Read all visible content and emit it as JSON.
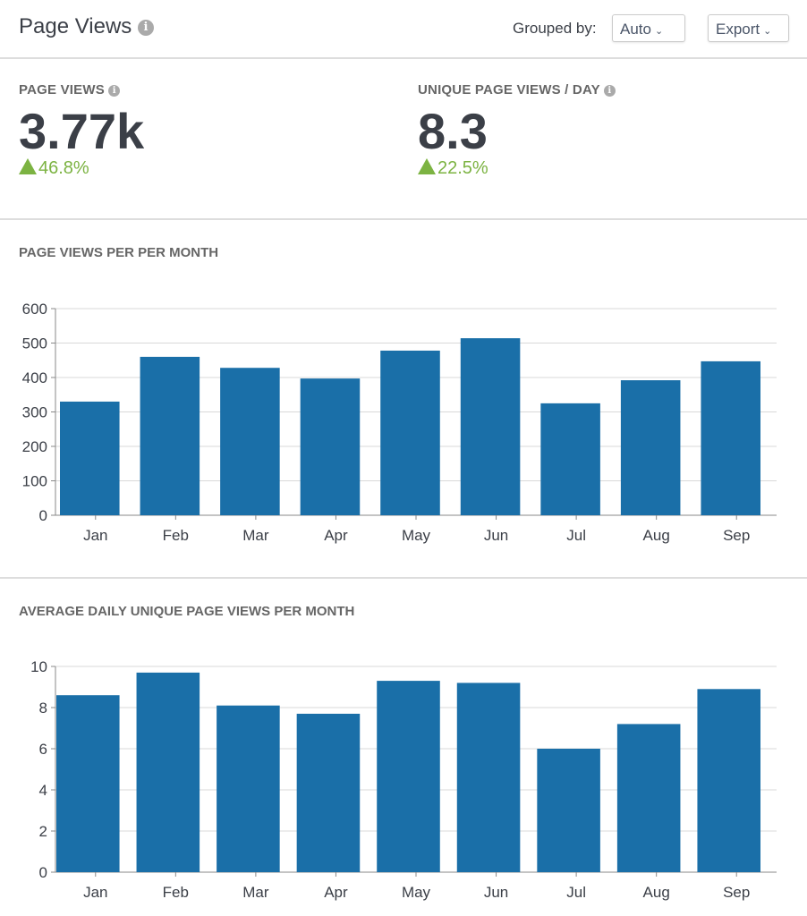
{
  "header": {
    "title": "Page Views",
    "info_icon": "info-icon",
    "grouped_label": "Grouped by:",
    "grouped_value": "Auto",
    "export_label": "Export"
  },
  "metrics": [
    {
      "label": "PAGE VIEWS",
      "value": "3.77k",
      "change": "46.8%",
      "trend": "up"
    },
    {
      "label": "UNIQUE PAGE VIEWS / DAY",
      "value": "8.3",
      "change": "22.5%",
      "trend": "up"
    }
  ],
  "colors": {
    "bar": "#1a6fa8",
    "positive": "#7cb342",
    "grid": "#d9d9d9"
  },
  "chart_data": [
    {
      "type": "bar",
      "title": "PAGE VIEWS PER PER MONTH",
      "categories": [
        "Jan",
        "Feb",
        "Mar",
        "Apr",
        "May",
        "Jun",
        "Jul",
        "Aug",
        "Sep"
      ],
      "values": [
        330,
        460,
        428,
        397,
        478,
        514,
        325,
        392,
        447
      ],
      "ylim": [
        0,
        600
      ],
      "yticks": [
        0,
        100,
        200,
        300,
        400,
        500,
        600
      ],
      "grid": true
    },
    {
      "type": "bar",
      "title": "AVERAGE DAILY UNIQUE PAGE VIEWS PER MONTH",
      "categories": [
        "Jan",
        "Feb",
        "Mar",
        "Apr",
        "May",
        "Jun",
        "Jul",
        "Aug",
        "Sep"
      ],
      "values": [
        8.6,
        9.7,
        8.1,
        7.7,
        9.3,
        9.2,
        6.0,
        7.2,
        8.9
      ],
      "ylim": [
        0,
        10
      ],
      "yticks": [
        0,
        2,
        4,
        6,
        8,
        10
      ],
      "grid": true
    }
  ]
}
